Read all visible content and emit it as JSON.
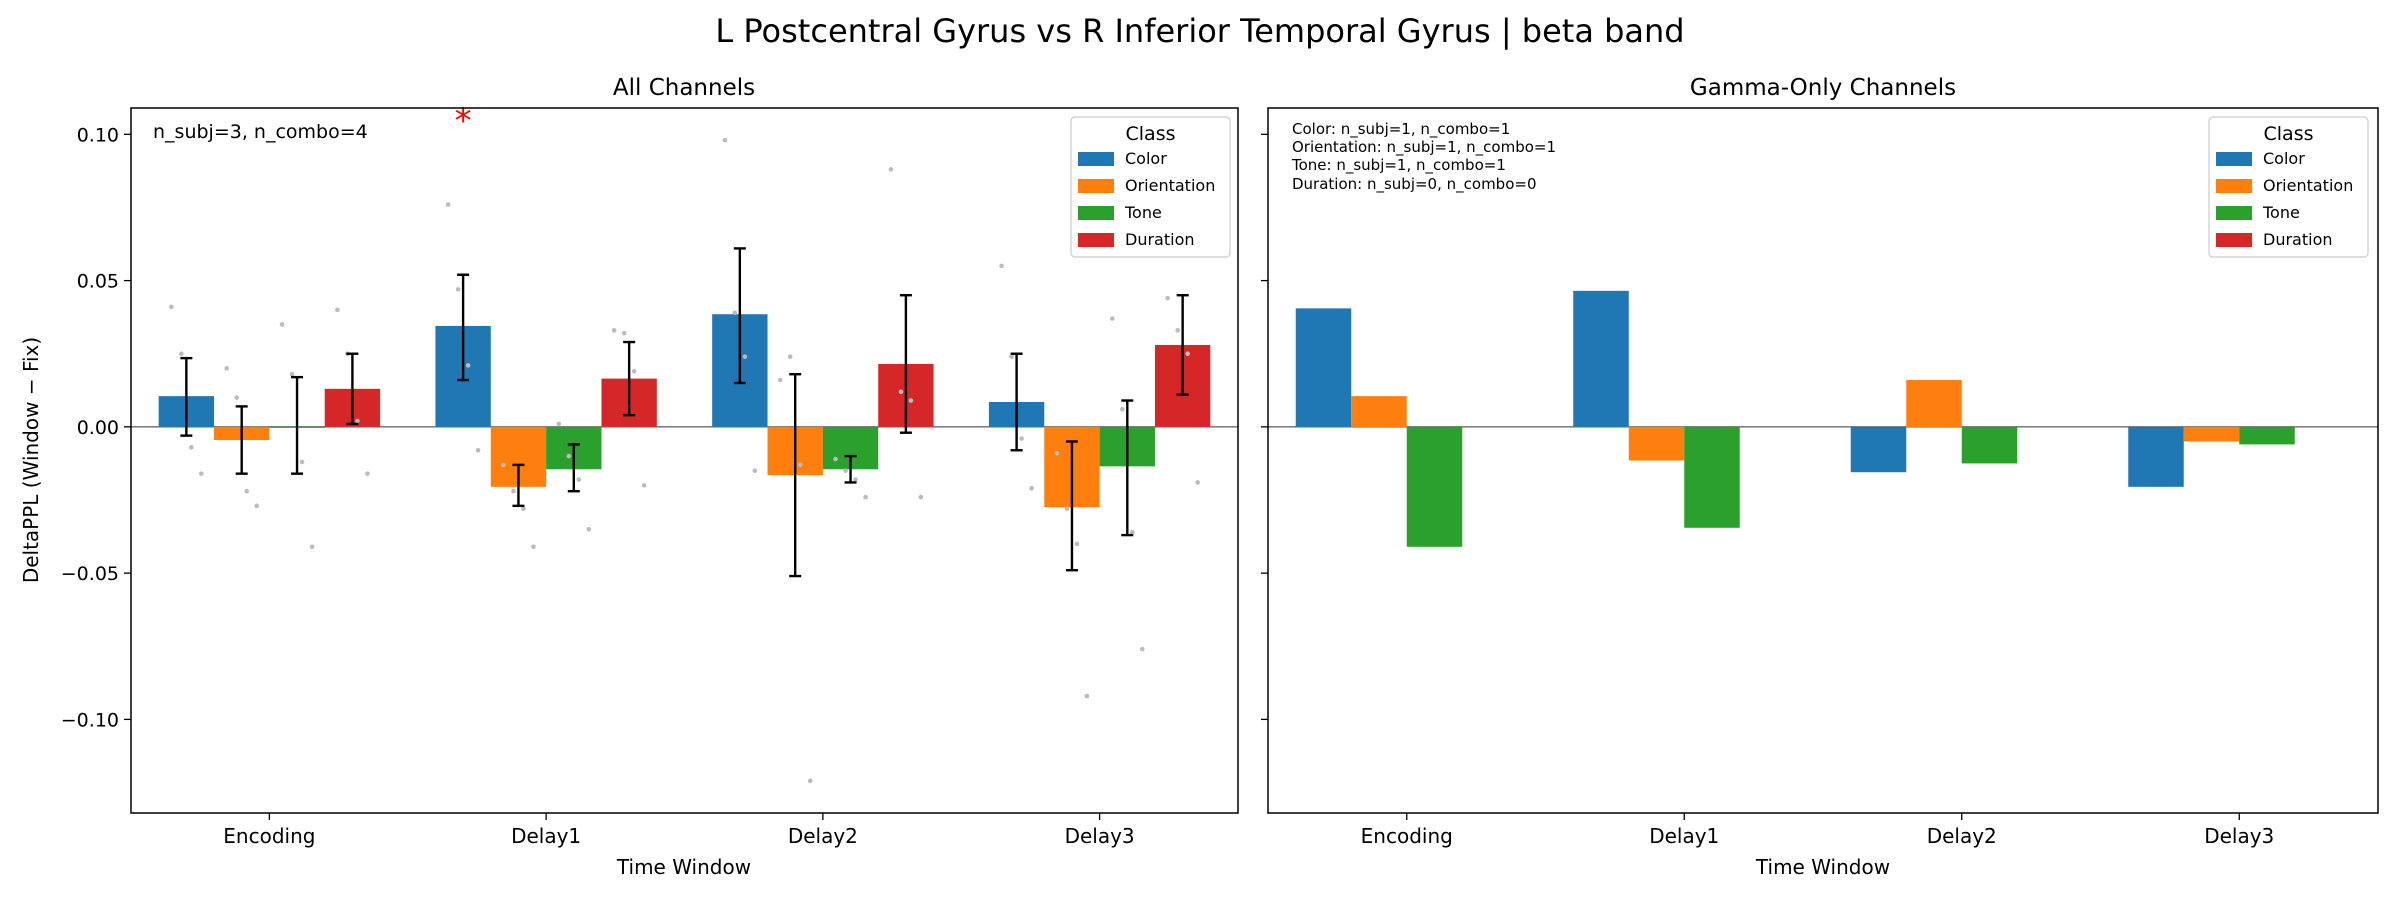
{
  "figure": {
    "suptitle": "L Postcentral Gyrus vs R Inferior Temporal Gyrus  |  beta band"
  },
  "colors": {
    "Color": "#1f77b4",
    "Orientation": "#ff7f0e",
    "Tone": "#2ca02c",
    "Duration": "#d62728",
    "zero_line": "#808080",
    "scatter": "#bbbbbb",
    "significance": "#ff0000"
  },
  "chart_data": [
    {
      "type": "bar",
      "title": "All Channels",
      "xlabel": "Time Window",
      "ylabel": "DeltaPPL (Window − Fix)",
      "ylim": [
        -0.132,
        0.109
      ],
      "yticks": [
        0.1,
        0.05,
        0.0,
        -0.05,
        -0.1
      ],
      "ytick_labels": [
        "0.10",
        "0.05",
        "0.00",
        "−0.05",
        "−0.10"
      ],
      "categories": [
        "Encoding",
        "Delay1",
        "Delay2",
        "Delay3"
      ],
      "annotation": "n_subj=3, n_combo=4",
      "significance_marker": {
        "symbol": "*",
        "category": "Delay1",
        "series": "Color"
      },
      "legend": {
        "title": "Class",
        "position": "upper right"
      },
      "series": [
        {
          "name": "Color",
          "values": [
            0.0105,
            0.0345,
            0.0385,
            0.0085
          ],
          "err_low": [
            -0.003,
            0.016,
            0.015,
            -0.008
          ],
          "err_high": [
            0.0235,
            0.052,
            0.061,
            0.025
          ]
        },
        {
          "name": "Orientation",
          "values": [
            -0.0045,
            -0.0205,
            -0.0165,
            -0.0275
          ],
          "err_low": [
            -0.016,
            -0.027,
            -0.051,
            -0.049
          ],
          "err_high": [
            0.007,
            -0.013,
            0.018,
            -0.005
          ]
        },
        {
          "name": "Tone",
          "values": [
            0.0,
            -0.0145,
            -0.0145,
            -0.0135
          ],
          "err_low": [
            -0.016,
            -0.022,
            -0.019,
            -0.037
          ],
          "err_high": [
            0.017,
            -0.006,
            -0.01,
            0.009
          ]
        },
        {
          "name": "Duration",
          "values": [
            0.013,
            0.0165,
            0.0215,
            0.028
          ],
          "err_low": [
            0.001,
            0.004,
            -0.002,
            0.011
          ],
          "err_high": [
            0.025,
            0.029,
            0.045,
            0.045
          ]
        }
      ],
      "points": [
        {
          "category": "Encoding",
          "series": "Color",
          "values": [
            0.041,
            0.025,
            -0.007,
            -0.016
          ]
        },
        {
          "category": "Encoding",
          "series": "Orientation",
          "values": [
            0.02,
            0.01,
            -0.022,
            -0.027
          ]
        },
        {
          "category": "Encoding",
          "series": "Tone",
          "values": [
            0.035,
            0.018,
            -0.012,
            -0.041
          ]
        },
        {
          "category": "Encoding",
          "series": "Duration",
          "values": [
            0.04,
            0.025,
            0.002,
            -0.016
          ]
        },
        {
          "category": "Delay1",
          "series": "Color",
          "values": [
            0.076,
            0.047,
            0.021,
            -0.008
          ]
        },
        {
          "category": "Delay1",
          "series": "Orientation",
          "values": [
            -0.013,
            -0.022,
            -0.028,
            -0.041
          ]
        },
        {
          "category": "Delay1",
          "series": "Tone",
          "values": [
            0.001,
            -0.01,
            -0.018,
            -0.035
          ]
        },
        {
          "category": "Delay1",
          "series": "Duration",
          "values": [
            0.033,
            0.032,
            0.019,
            -0.02
          ]
        },
        {
          "category": "Delay2",
          "series": "Color",
          "values": [
            0.098,
            0.039,
            0.024,
            -0.015
          ]
        },
        {
          "category": "Delay2",
          "series": "Orientation",
          "values": [
            0.016,
            0.024,
            -0.013,
            -0.121
          ]
        },
        {
          "category": "Delay2",
          "series": "Tone",
          "values": [
            -0.011,
            -0.015,
            -0.018,
            -0.024
          ]
        },
        {
          "category": "Delay2",
          "series": "Duration",
          "values": [
            0.088,
            0.012,
            0.009,
            -0.024
          ]
        },
        {
          "category": "Delay3",
          "series": "Color",
          "values": [
            0.055,
            0.024,
            -0.004,
            -0.021
          ]
        },
        {
          "category": "Delay3",
          "series": "Orientation",
          "values": [
            -0.009,
            -0.028,
            -0.04,
            -0.092
          ]
        },
        {
          "category": "Delay3",
          "series": "Tone",
          "values": [
            0.037,
            0.006,
            -0.036,
            -0.076
          ]
        },
        {
          "category": "Delay3",
          "series": "Duration",
          "values": [
            0.044,
            0.033,
            0.025,
            -0.019
          ]
        }
      ]
    },
    {
      "type": "bar",
      "title": "Gamma-Only Channels",
      "xlabel": "Time Window",
      "ylabel": "",
      "ylim": [
        -0.132,
        0.109
      ],
      "yticks": [
        0.1,
        0.05,
        0.0,
        -0.05,
        -0.1
      ],
      "categories": [
        "Encoding",
        "Delay1",
        "Delay2",
        "Delay3"
      ],
      "annotation_lines": [
        "Color: n_subj=1, n_combo=1",
        "Orientation: n_subj=1, n_combo=1",
        "Tone: n_subj=1, n_combo=1",
        "Duration: n_subj=0, n_combo=0"
      ],
      "legend": {
        "title": "Class",
        "position": "upper right"
      },
      "series": [
        {
          "name": "Color",
          "values": [
            0.0405,
            0.0465,
            -0.0155,
            -0.0205
          ]
        },
        {
          "name": "Orientation",
          "values": [
            0.0105,
            -0.0115,
            0.016,
            -0.005
          ]
        },
        {
          "name": "Tone",
          "values": [
            -0.041,
            -0.0345,
            -0.0125,
            -0.006
          ]
        },
        {
          "name": "Duration",
          "values": [
            null,
            null,
            null,
            null
          ]
        }
      ]
    }
  ]
}
